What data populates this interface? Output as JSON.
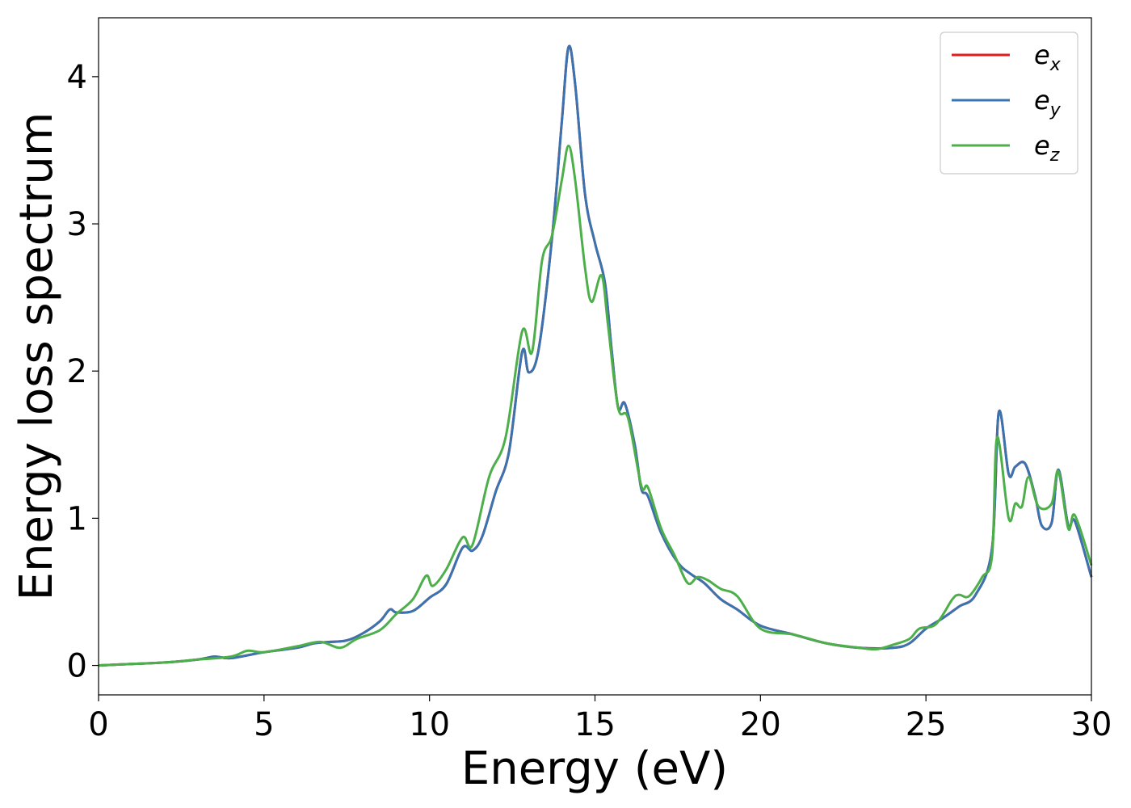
{
  "chart_data": {
    "type": "line",
    "xlabel": "Energy (eV)",
    "ylabel": "Energy loss spectrum",
    "xlim": [
      0,
      30
    ],
    "ylim": [
      -0.2,
      4.4
    ],
    "xticks": [
      0,
      5,
      10,
      15,
      20,
      25,
      30
    ],
    "yticks": [
      0,
      1,
      2,
      3,
      4
    ],
    "grid": false,
    "legend_position": "top-right",
    "series": [
      {
        "name": "e_x",
        "name_base": "e",
        "name_sub": "x",
        "color": "#e41a1c",
        "points": [
          [
            0,
            0
          ],
          [
            1,
            0.01
          ],
          [
            2,
            0.02
          ],
          [
            3,
            0.04
          ],
          [
            3.5,
            0.06
          ],
          [
            4,
            0.05
          ],
          [
            5,
            0.09
          ],
          [
            6,
            0.12
          ],
          [
            6.5,
            0.15
          ],
          [
            7,
            0.16
          ],
          [
            7.5,
            0.17
          ],
          [
            8,
            0.22
          ],
          [
            8.5,
            0.3
          ],
          [
            8.8,
            0.38
          ],
          [
            9,
            0.36
          ],
          [
            9.5,
            0.37
          ],
          [
            10,
            0.46
          ],
          [
            10.5,
            0.55
          ],
          [
            11,
            0.8
          ],
          [
            11.3,
            0.78
          ],
          [
            11.6,
            0.88
          ],
          [
            12,
            1.18
          ],
          [
            12.4,
            1.45
          ],
          [
            12.8,
            2.13
          ],
          [
            13,
            1.99
          ],
          [
            13.3,
            2.15
          ],
          [
            13.7,
            2.9
          ],
          [
            14,
            3.7
          ],
          [
            14.2,
            4.2
          ],
          [
            14.4,
            3.95
          ],
          [
            14.7,
            3.2
          ],
          [
            15,
            2.87
          ],
          [
            15.3,
            2.6
          ],
          [
            15.5,
            2.15
          ],
          [
            15.7,
            1.75
          ],
          [
            15.9,
            1.78
          ],
          [
            16.2,
            1.5
          ],
          [
            16.4,
            1.2
          ],
          [
            16.6,
            1.15
          ],
          [
            17,
            0.9
          ],
          [
            17.5,
            0.7
          ],
          [
            17.9,
            0.62
          ],
          [
            18.3,
            0.56
          ],
          [
            18.8,
            0.45
          ],
          [
            19.3,
            0.38
          ],
          [
            20,
            0.27
          ],
          [
            21,
            0.21
          ],
          [
            22,
            0.15
          ],
          [
            23,
            0.12
          ],
          [
            24,
            0.12
          ],
          [
            24.5,
            0.15
          ],
          [
            25,
            0.25
          ],
          [
            25.5,
            0.32
          ],
          [
            26,
            0.4
          ],
          [
            26.5,
            0.48
          ],
          [
            27,
            0.8
          ],
          [
            27.2,
            1.72
          ],
          [
            27.5,
            1.3
          ],
          [
            27.7,
            1.35
          ],
          [
            28,
            1.37
          ],
          [
            28.3,
            1.15
          ],
          [
            28.5,
            0.95
          ],
          [
            28.8,
            0.97
          ],
          [
            29,
            1.33
          ],
          [
            29.3,
            0.95
          ],
          [
            29.5,
            0.98
          ],
          [
            30,
            0.6
          ]
        ]
      },
      {
        "name": "e_y",
        "name_base": "e",
        "name_sub": "y",
        "color": "#3a74b0",
        "points": [
          [
            0,
            0
          ],
          [
            1,
            0.01
          ],
          [
            2,
            0.02
          ],
          [
            3,
            0.04
          ],
          [
            3.5,
            0.06
          ],
          [
            4,
            0.05
          ],
          [
            5,
            0.09
          ],
          [
            6,
            0.12
          ],
          [
            6.5,
            0.15
          ],
          [
            7,
            0.16
          ],
          [
            7.5,
            0.17
          ],
          [
            8,
            0.22
          ],
          [
            8.5,
            0.3
          ],
          [
            8.8,
            0.38
          ],
          [
            9,
            0.36
          ],
          [
            9.5,
            0.37
          ],
          [
            10,
            0.46
          ],
          [
            10.5,
            0.55
          ],
          [
            11,
            0.8
          ],
          [
            11.3,
            0.78
          ],
          [
            11.6,
            0.88
          ],
          [
            12,
            1.18
          ],
          [
            12.4,
            1.45
          ],
          [
            12.8,
            2.13
          ],
          [
            13,
            1.99
          ],
          [
            13.3,
            2.15
          ],
          [
            13.7,
            2.9
          ],
          [
            14,
            3.7
          ],
          [
            14.2,
            4.2
          ],
          [
            14.4,
            3.95
          ],
          [
            14.7,
            3.2
          ],
          [
            15,
            2.87
          ],
          [
            15.3,
            2.6
          ],
          [
            15.5,
            2.15
          ],
          [
            15.7,
            1.75
          ],
          [
            15.9,
            1.78
          ],
          [
            16.2,
            1.5
          ],
          [
            16.4,
            1.2
          ],
          [
            16.6,
            1.15
          ],
          [
            17,
            0.9
          ],
          [
            17.5,
            0.7
          ],
          [
            17.9,
            0.62
          ],
          [
            18.3,
            0.56
          ],
          [
            18.8,
            0.45
          ],
          [
            19.3,
            0.38
          ],
          [
            20,
            0.27
          ],
          [
            21,
            0.21
          ],
          [
            22,
            0.15
          ],
          [
            23,
            0.12
          ],
          [
            24,
            0.12
          ],
          [
            24.5,
            0.15
          ],
          [
            25,
            0.25
          ],
          [
            25.5,
            0.32
          ],
          [
            26,
            0.4
          ],
          [
            26.5,
            0.48
          ],
          [
            27,
            0.8
          ],
          [
            27.2,
            1.72
          ],
          [
            27.5,
            1.3
          ],
          [
            27.7,
            1.35
          ],
          [
            28,
            1.37
          ],
          [
            28.3,
            1.15
          ],
          [
            28.5,
            0.95
          ],
          [
            28.8,
            0.97
          ],
          [
            29,
            1.33
          ],
          [
            29.3,
            0.95
          ],
          [
            29.5,
            0.98
          ],
          [
            30,
            0.6
          ]
        ]
      },
      {
        "name": "e_z",
        "name_base": "e",
        "name_sub": "z",
        "color": "#4daf4a",
        "points": [
          [
            0,
            0
          ],
          [
            1,
            0.01
          ],
          [
            2,
            0.02
          ],
          [
            3,
            0.04
          ],
          [
            4,
            0.06
          ],
          [
            4.5,
            0.1
          ],
          [
            5,
            0.09
          ],
          [
            6,
            0.13
          ],
          [
            6.7,
            0.16
          ],
          [
            7.3,
            0.12
          ],
          [
            7.8,
            0.18
          ],
          [
            8.5,
            0.24
          ],
          [
            9,
            0.35
          ],
          [
            9.5,
            0.45
          ],
          [
            9.9,
            0.61
          ],
          [
            10.1,
            0.54
          ],
          [
            10.5,
            0.65
          ],
          [
            11,
            0.87
          ],
          [
            11.3,
            0.82
          ],
          [
            11.8,
            1.28
          ],
          [
            12.3,
            1.55
          ],
          [
            12.8,
            2.27
          ],
          [
            13.1,
            2.13
          ],
          [
            13.4,
            2.75
          ],
          [
            13.7,
            2.92
          ],
          [
            14,
            3.3
          ],
          [
            14.2,
            3.53
          ],
          [
            14.4,
            3.3
          ],
          [
            14.7,
            2.7
          ],
          [
            14.9,
            2.47
          ],
          [
            15.2,
            2.65
          ],
          [
            15.4,
            2.3
          ],
          [
            15.7,
            1.75
          ],
          [
            16,
            1.68
          ],
          [
            16.4,
            1.22
          ],
          [
            16.6,
            1.21
          ],
          [
            17,
            0.93
          ],
          [
            17.4,
            0.75
          ],
          [
            17.8,
            0.56
          ],
          [
            18.1,
            0.6
          ],
          [
            18.4,
            0.58
          ],
          [
            18.8,
            0.52
          ],
          [
            19.3,
            0.47
          ],
          [
            20,
            0.25
          ],
          [
            21,
            0.21
          ],
          [
            22,
            0.15
          ],
          [
            23,
            0.12
          ],
          [
            23.5,
            0.11
          ],
          [
            24,
            0.14
          ],
          [
            24.5,
            0.18
          ],
          [
            24.8,
            0.25
          ],
          [
            25.3,
            0.28
          ],
          [
            25.8,
            0.45
          ],
          [
            26,
            0.48
          ],
          [
            26.3,
            0.47
          ],
          [
            26.7,
            0.6
          ],
          [
            27,
            0.75
          ],
          [
            27.15,
            1.55
          ],
          [
            27.5,
            1.0
          ],
          [
            27.7,
            1.1
          ],
          [
            27.9,
            1.08
          ],
          [
            28.1,
            1.28
          ],
          [
            28.4,
            1.08
          ],
          [
            28.8,
            1.1
          ],
          [
            29,
            1.32
          ],
          [
            29.3,
            0.93
          ],
          [
            29.5,
            1.02
          ],
          [
            30,
            0.68
          ]
        ]
      }
    ]
  }
}
